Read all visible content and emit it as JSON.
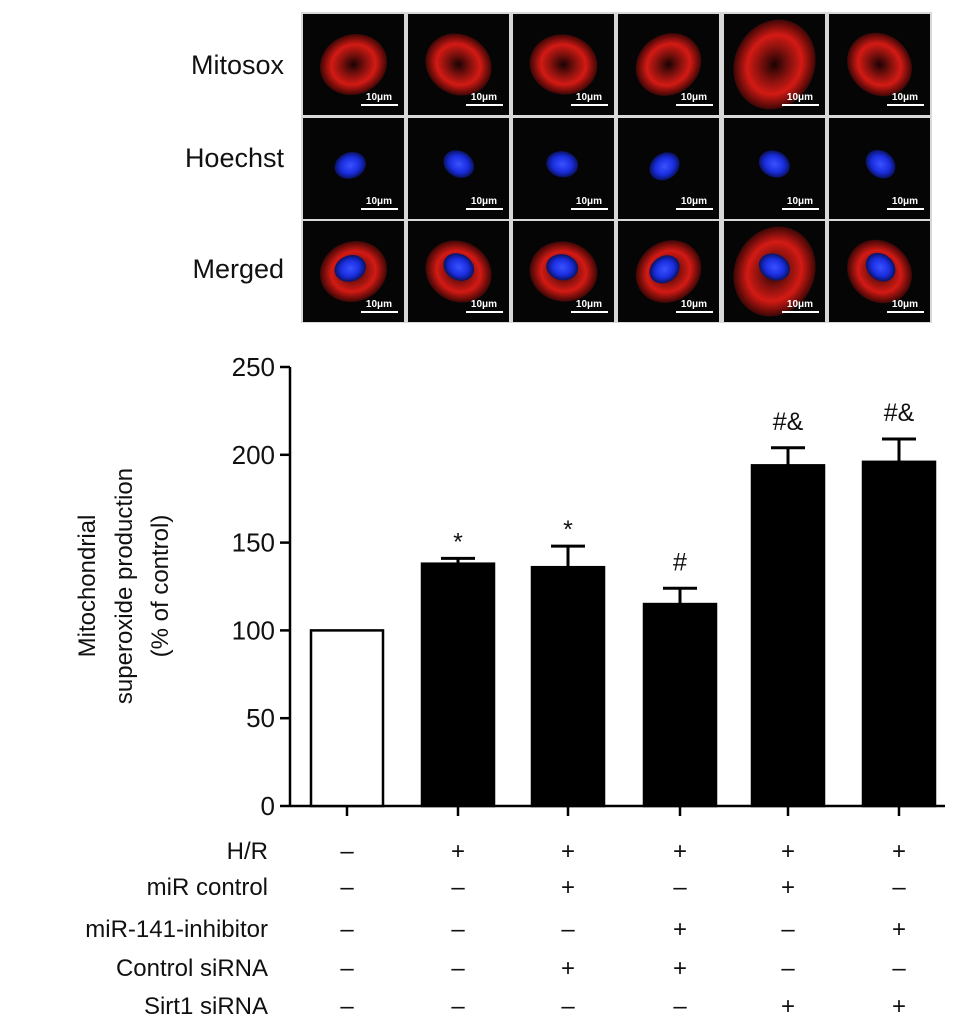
{
  "micrographs": {
    "rows": [
      {
        "label": "Mitosox",
        "channel": "red"
      },
      {
        "label": "Hoechst",
        "channel": "blue"
      },
      {
        "label": "Merged",
        "channel": "merged"
      }
    ],
    "columns": 6,
    "scale_bar_label": "10μm",
    "colors": {
      "mitosox": "#d41a14",
      "hoechst": "#1a2ee0",
      "background": "#050505"
    }
  },
  "chart_data": {
    "type": "bar",
    "ylabel_lines": [
      "Mitochondrial",
      "superoxide production",
      "(% of control)"
    ],
    "ylim": [
      0,
      250
    ],
    "yticks": [
      0,
      50,
      100,
      150,
      200,
      250
    ],
    "grid": false,
    "series": [
      {
        "values": [
          100,
          138,
          136,
          115,
          194,
          196
        ],
        "errors": [
          0,
          3,
          12,
          9,
          10,
          13
        ],
        "significance": [
          "",
          "*",
          "*",
          "#",
          "#&",
          "#&"
        ],
        "fill": [
          "#ffffff",
          "#000000",
          "#000000",
          "#000000",
          "#000000",
          "#000000"
        ]
      }
    ],
    "conditions": [
      {
        "label": "H/R",
        "marks": [
          "–",
          "+",
          "+",
          "+",
          "+",
          "+"
        ]
      },
      {
        "label": "miR control",
        "marks": [
          "–",
          "–",
          "+",
          "–",
          "+",
          "–"
        ]
      },
      {
        "label": "miR-141-inhibitor",
        "marks": [
          "–",
          "–",
          "–",
          "+",
          "–",
          "+"
        ]
      },
      {
        "label": "Control siRNA",
        "marks": [
          "–",
          "–",
          "+",
          "+",
          "–",
          "–"
        ]
      },
      {
        "label": "Sirt1 siRNA",
        "marks": [
          "–",
          "–",
          "–",
          "–",
          "+",
          "+"
        ]
      }
    ]
  }
}
